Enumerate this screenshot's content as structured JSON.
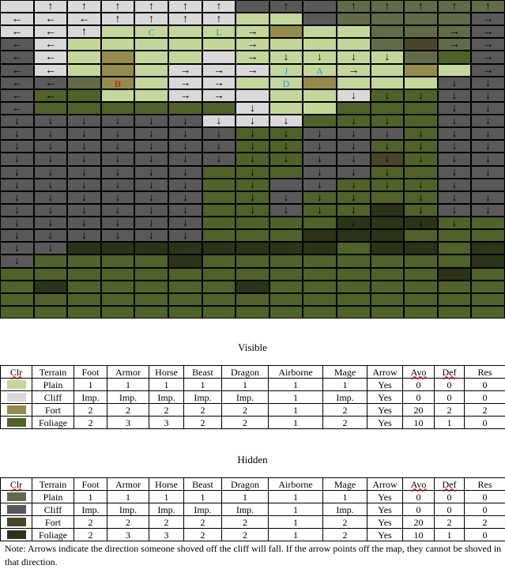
{
  "map": {
    "cols": 15,
    "rows": 25,
    "colors": {
      "P": "#c4d79b",
      "C": "#d9d9d9",
      "F": "#958b4b",
      "G": "#4f6228",
      "p": "#5f6c47",
      "c": "#595959",
      "f": "#4a4529",
      "g": "#2b3417"
    },
    "arrow_glyphs": {
      "u": "↑",
      "d": "↓",
      "l": "←",
      "r": "→"
    },
    "terrain": [
      "CCCCCCCcccppppp",
      "CCCCCCCPPcppppc",
      "CCCPPPPPFPPpppc",
      "cCPPPPPPPPPpfpc",
      "cCPFPPCPPPPPpGc",
      "cCPFPCCCPPPPFPc",
      "ccpFPCCPPFPPPcc",
      "cGGPPCCCPPCGGcc",
      "cGGGGGGCPPGGGcc",
      "ccccccCCCGGGGcc",
      "cccccccGGcccGcc",
      "cccccccGGccGGcc",
      "cccccccGGccfGcc",
      "ccccccGGGccGGcc",
      "ccccccGGccGGGcc",
      "ccccccGGcGGGGcc",
      "ccccccGGcGGgGcc",
      "ccccccGGGGgggGG",
      "ccccccGGGgggGGG",
      "ccggggggggGggGg",
      "cGGGGgGGGGGGGGg",
      "GGGGGGGGGGGGGgG",
      "GgGGGGGgGGGGGGG",
      "GGGGGGGGGGGGGGG",
      "GGGGGGGGGGGGGGG"
    ],
    "arrows": [
      ".uuuuuu.u.uuuuu",
      "llluuuu.......r",
      "llu....r.....rr",
      "ll.....r.....rr",
      "ll.....rdddd..r",
      "ll...rrrrrr...r",
      "ll...rr......dd",
      "ll...rr...ddddd",
      "l......d.....dd",
      "ddddddddd.dd.dd",
      "ddddddddddddddd",
      "ddddddddddddddd",
      "ddddddddddddddd",
      "dddddd.d.ddd.dd",
      "dddddd.d.ddddd.",
      "dddddd.dddd.ddd",
      "dddddd.dddd.ddd",
      "dddddd....d.dd.",
      "dddddd.........",
      "dd.............",
      "d..............",
      "...............",
      "...............",
      "...............",
      "..............."
    ],
    "labels": [
      {
        "text": "C",
        "row": 2,
        "col": 4,
        "color": "cyan"
      },
      {
        "text": "L",
        "row": 2,
        "col": 6,
        "color": "cyan"
      },
      {
        "text": "J",
        "row": 5,
        "col": 8,
        "color": "cyan"
      },
      {
        "text": "A",
        "row": 5,
        "col": 9,
        "color": "cyan"
      },
      {
        "text": "B",
        "row": 6,
        "col": 3,
        "color": "red"
      },
      {
        "text": "D",
        "row": 6,
        "col": 8,
        "color": "cyan"
      }
    ]
  },
  "visible_table": {
    "title": "Visible",
    "headers": [
      "Clr",
      "Terrain",
      "Foot",
      "Armor",
      "Horse",
      "Beast",
      "Dragon",
      "Airborne",
      "Mage",
      "Arrow",
      "Avo",
      "Def",
      "Res"
    ],
    "rows": [
      {
        "color": "#c4d79b",
        "cells": [
          "Plain",
          "1",
          "1",
          "1",
          "1",
          "1",
          "1",
          "1",
          "Yes",
          "0",
          "0",
          "0"
        ]
      },
      {
        "color": "#d9d9d9",
        "cells": [
          "Cliff",
          "Imp.",
          "Imp.",
          "Imp.",
          "Imp.",
          "Imp.",
          "1",
          "Imp.",
          "Yes",
          "0",
          "0",
          "0"
        ]
      },
      {
        "color": "#958b4b",
        "cells": [
          "Fort",
          "2",
          "2",
          "2",
          "2",
          "2",
          "1",
          "2",
          "Yes",
          "20",
          "2",
          "2"
        ]
      },
      {
        "color": "#4f6228",
        "cells": [
          "Foliage",
          "2",
          "3",
          "3",
          "2",
          "2",
          "1",
          "2",
          "Yes",
          "10",
          "1",
          "0"
        ]
      }
    ]
  },
  "hidden_table": {
    "title": "Hidden",
    "headers": [
      "Clr",
      "Terrain",
      "Foot",
      "Armor",
      "Horse",
      "Beast",
      "Dragon",
      "Airborne",
      "Mage",
      "Arrow",
      "Avo",
      "Def",
      "Res"
    ],
    "rows": [
      {
        "color": "#5f6c47",
        "cells": [
          "Plain",
          "1",
          "1",
          "1",
          "1",
          "1",
          "1",
          "1",
          "Yes",
          "0",
          "0",
          "0"
        ]
      },
      {
        "color": "#595959",
        "cells": [
          "Cliff",
          "Imp.",
          "Imp.",
          "Imp.",
          "Imp.",
          "Imp.",
          "1",
          "Imp.",
          "Yes",
          "0",
          "0",
          "0"
        ]
      },
      {
        "color": "#4a4529",
        "cells": [
          "Fort",
          "2",
          "2",
          "2",
          "2",
          "2",
          "1",
          "2",
          "Yes",
          "20",
          "2",
          "2"
        ]
      },
      {
        "color": "#2b3417",
        "cells": [
          "Foliage",
          "2",
          "3",
          "3",
          "2",
          "2",
          "1",
          "2",
          "Yes",
          "10",
          "1",
          "0"
        ]
      }
    ]
  },
  "note": "Note: Arrows indicate the direction someone shoved off the cliff will fall.  If the arrow points off the map, they cannot be shoved in that direction."
}
